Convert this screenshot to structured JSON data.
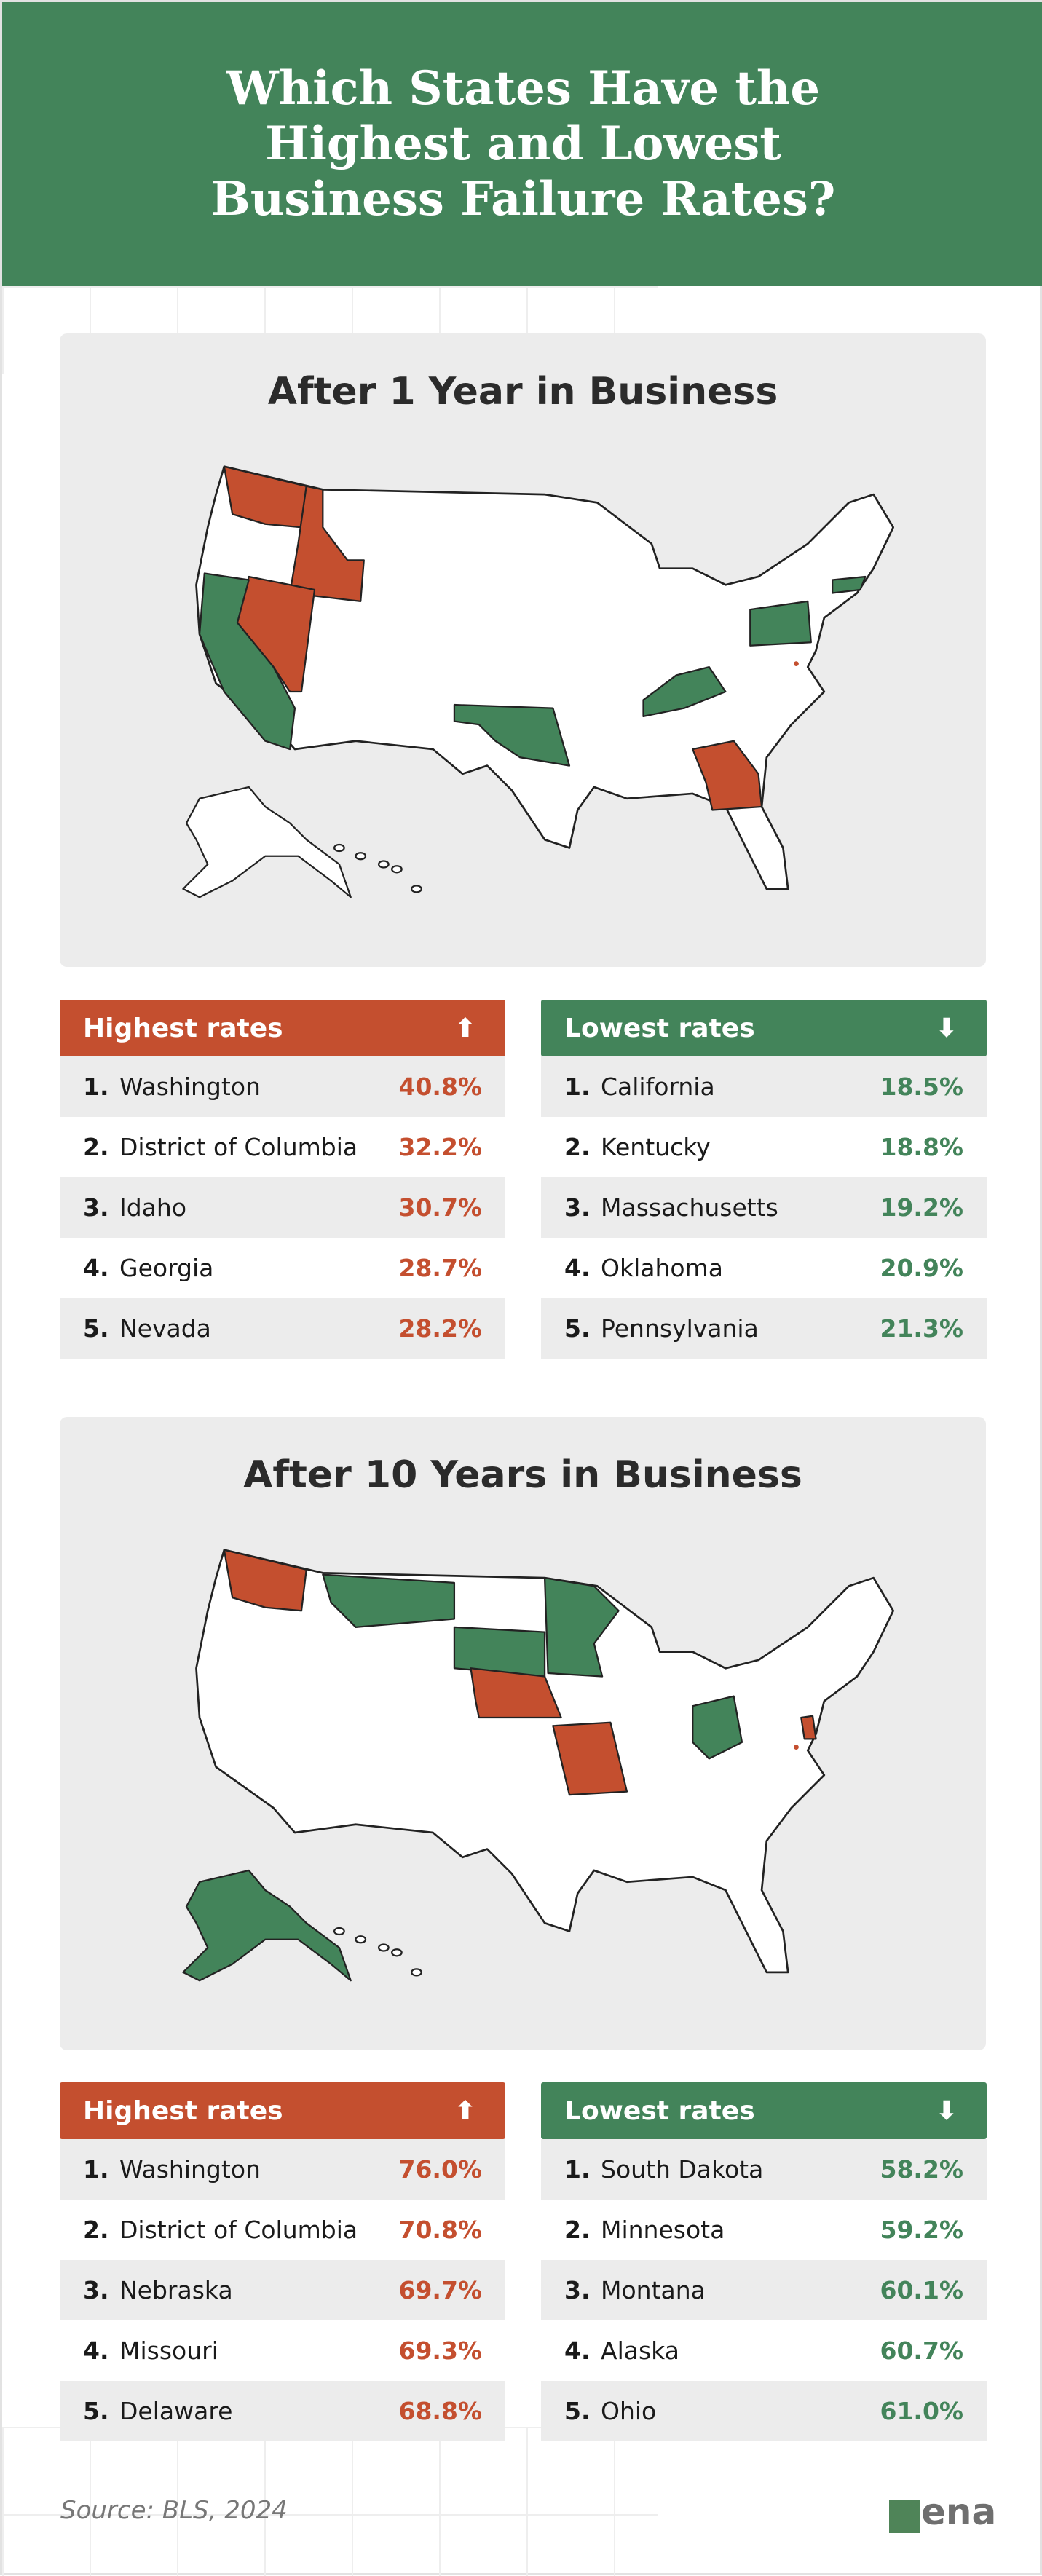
{
  "title": "Which States Have the Highest and Lowest Business Failure Rates?",
  "colors": {
    "high": "#c44f2f",
    "low": "#43845a",
    "panel": "#ececec"
  },
  "sections": [
    {
      "title": "After 1 Year in Business",
      "highlighted_high": [
        "Washington",
        "District of Columbia",
        "Idaho",
        "Georgia",
        "Nevada"
      ],
      "highest": {
        "label": "Highest rates",
        "icon": "arrow-up-icon",
        "rows": [
          {
            "rank": "1.",
            "state": "Washington",
            "value": "40.8%"
          },
          {
            "rank": "2.",
            "state": "District of Columbia",
            "value": "32.2%"
          },
          {
            "rank": "3.",
            "state": "Idaho",
            "value": "30.7%"
          },
          {
            "rank": "4.",
            "state": "Georgia",
            "value": "28.7%"
          },
          {
            "rank": "5.",
            "state": "Nevada",
            "value": "28.2%"
          }
        ]
      },
      "lowest": {
        "label": "Lowest rates",
        "icon": "arrow-down-icon",
        "rows": [
          {
            "rank": "1.",
            "state": "California",
            "value": "18.5%"
          },
          {
            "rank": "2.",
            "state": "Kentucky",
            "value": "18.8%"
          },
          {
            "rank": "3.",
            "state": "Massachusetts",
            "value": "19.2%"
          },
          {
            "rank": "4.",
            "state": "Oklahoma",
            "value": "20.9%"
          },
          {
            "rank": "5.",
            "state": "Pennsylvania",
            "value": "21.3%"
          }
        ]
      }
    },
    {
      "title": "After 10 Years in Business",
      "highest": {
        "label": "Highest rates",
        "icon": "arrow-up-icon",
        "rows": [
          {
            "rank": "1.",
            "state": "Washington",
            "value": "76.0%"
          },
          {
            "rank": "2.",
            "state": "District of Columbia",
            "value": "70.8%"
          },
          {
            "rank": "3.",
            "state": "Nebraska",
            "value": "69.7%"
          },
          {
            "rank": "4.",
            "state": "Missouri",
            "value": "69.3%"
          },
          {
            "rank": "5.",
            "state": "Delaware",
            "value": "68.8%"
          }
        ]
      },
      "lowest": {
        "label": "Lowest rates",
        "icon": "arrow-down-icon",
        "rows": [
          {
            "rank": "1.",
            "state": "South Dakota",
            "value": "58.2%"
          },
          {
            "rank": "2.",
            "state": "Minnesota",
            "value": "59.2%"
          },
          {
            "rank": "3.",
            "state": "Montana",
            "value": "60.1%"
          },
          {
            "rank": "4.",
            "state": "Alaska",
            "value": "60.7%"
          },
          {
            "rank": "5.",
            "state": "Ohio",
            "value": "61.0%"
          }
        ]
      }
    }
  ],
  "source": "Source: BLS, 2024",
  "logo": "vena"
}
